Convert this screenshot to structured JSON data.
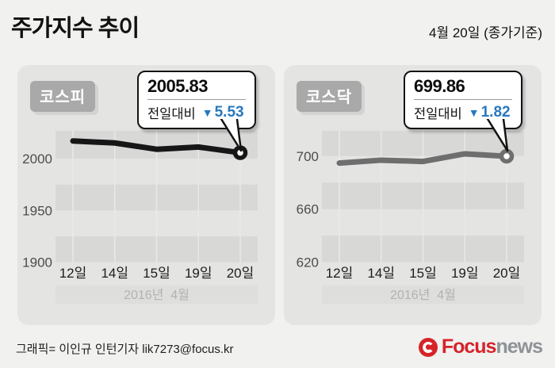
{
  "header": {
    "title": "주가지수 추이",
    "date_note": "4월 20일 (종가기준)"
  },
  "chart_data": [
    {
      "type": "line",
      "title": "코스피",
      "categories": [
        "12일",
        "14일",
        "15일",
        "19일",
        "20일"
      ],
      "values": [
        2017.2,
        2015.3,
        2009.2,
        2011.36,
        2005.83
      ],
      "ylim": [
        1900,
        2027
      ],
      "yticks": [
        2000,
        1950,
        1900
      ],
      "band_step": 25,
      "x_axis_note": "2016년  4월",
      "line_color": "#161616",
      "grid": "horizontal-bands",
      "legend": "none",
      "callout": {
        "value": "2005.83",
        "label": "전일대비",
        "arrow": "▼",
        "direction": "down",
        "change": "5.53"
      }
    },
    {
      "type": "line",
      "title": "코스닥",
      "categories": [
        "12일",
        "14일",
        "15일",
        "19일",
        "20일"
      ],
      "values": [
        694.7,
        696.9,
        695.9,
        701.68,
        699.86
      ],
      "ylim": [
        620,
        719
      ],
      "yticks": [
        700,
        660,
        620
      ],
      "band_step": 20,
      "x_axis_note": "2016년  4월",
      "line_color": "#6e6e6e",
      "grid": "horizontal-bands",
      "legend": "none",
      "callout": {
        "value": "699.86",
        "label": "전일대비",
        "arrow": "▼",
        "direction": "down",
        "change": "1.82"
      }
    }
  ],
  "footer": {
    "credit": "그래픽= 이인규 인턴기자 lik7273@focus.kr",
    "logo": {
      "focus": "Focus",
      "news": "news"
    }
  },
  "colors": {
    "page_bg": "#f1f1ef",
    "panel_bg": "#e4e4e3",
    "band": "#d8d8d7",
    "month_band": "#dededd",
    "gridline": "#e9e9e8",
    "badge_bg": "#a9a9a9",
    "accent_blue": "#2878be",
    "logo_red": "#d6232a",
    "logo_gray": "#8d9297"
  }
}
